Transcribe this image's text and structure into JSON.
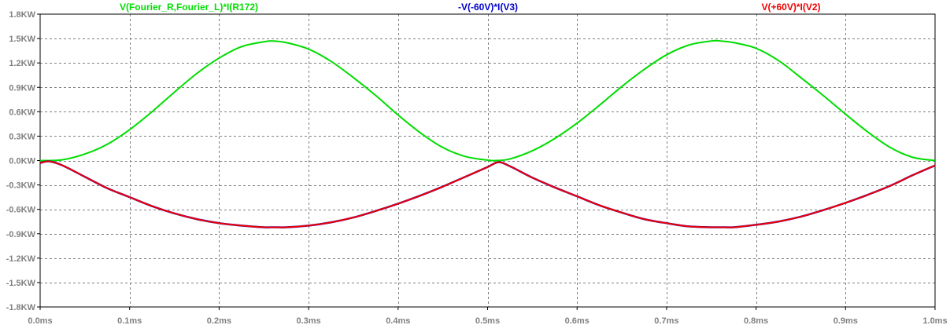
{
  "chart_data": {
    "type": "line",
    "title": "",
    "xlabel": "",
    "ylabel": "",
    "xlim": [
      0,
      1.0
    ],
    "ylim": [
      -1.8,
      1.8
    ],
    "grid": true,
    "legend_placement": "top",
    "x_ticks": [
      "0.0ms",
      "0.1ms",
      "0.2ms",
      "0.3ms",
      "0.4ms",
      "0.5ms",
      "0.6ms",
      "0.7ms",
      "0.8ms",
      "0.9ms",
      "1.0ms"
    ],
    "y_ticks": [
      "1.8KW",
      "1.5KW",
      "1.2KW",
      "0.9KW",
      "0.6KW",
      "0.3KW",
      "0.0KW",
      "-0.3KW",
      "-0.6KW",
      "-0.9KW",
      "-1.2KW",
      "-1.5KW",
      "-1.8KW"
    ],
    "x_tick_values": [
      0,
      0.1,
      0.2,
      0.3,
      0.4,
      0.5,
      0.6,
      0.7,
      0.8,
      0.9,
      1.0
    ],
    "y_tick_values": [
      1.8,
      1.5,
      1.2,
      0.9,
      0.6,
      0.3,
      0.0,
      -0.3,
      -0.6,
      -0.9,
      -1.2,
      -1.5,
      -1.8
    ],
    "series": [
      {
        "name": "V(Fourier_R,Fourier_L)*I(R172)",
        "color": "#00dd00",
        "x": [
          0.0,
          0.025,
          0.05,
          0.075,
          0.1,
          0.125,
          0.15,
          0.175,
          0.2,
          0.225,
          0.25,
          0.26,
          0.275,
          0.3,
          0.325,
          0.35,
          0.375,
          0.4,
          0.425,
          0.45,
          0.475,
          0.5,
          0.51,
          0.525,
          0.55,
          0.575,
          0.6,
          0.625,
          0.65,
          0.675,
          0.7,
          0.725,
          0.75,
          0.76,
          0.775,
          0.8,
          0.825,
          0.85,
          0.875,
          0.9,
          0.925,
          0.95,
          0.975,
          1.0
        ],
        "y": [
          0.0,
          0.01,
          0.08,
          0.2,
          0.38,
          0.6,
          0.84,
          1.07,
          1.26,
          1.4,
          1.46,
          1.47,
          1.45,
          1.37,
          1.22,
          1.02,
          0.8,
          0.56,
          0.34,
          0.16,
          0.05,
          0.005,
          0.0,
          0.02,
          0.12,
          0.27,
          0.46,
          0.68,
          0.91,
          1.12,
          1.3,
          1.42,
          1.47,
          1.47,
          1.45,
          1.38,
          1.23,
          1.02,
          0.8,
          0.57,
          0.35,
          0.16,
          0.04,
          0.0
        ]
      },
      {
        "name": "-V(-60V)*I(V3)",
        "color": "#0000cc",
        "x": [
          0.0,
          0.01,
          0.025,
          0.05,
          0.075,
          0.1,
          0.125,
          0.15,
          0.175,
          0.2,
          0.225,
          0.25,
          0.26,
          0.275,
          0.3,
          0.325,
          0.35,
          0.375,
          0.4,
          0.425,
          0.45,
          0.475,
          0.5,
          0.512,
          0.525,
          0.55,
          0.575,
          0.6,
          0.625,
          0.65,
          0.675,
          0.7,
          0.725,
          0.75,
          0.765,
          0.775,
          0.8,
          0.825,
          0.85,
          0.875,
          0.9,
          0.925,
          0.95,
          0.975,
          1.0
        ],
        "y": [
          -0.03,
          -0.01,
          -0.06,
          -0.2,
          -0.34,
          -0.45,
          -0.56,
          -0.65,
          -0.72,
          -0.77,
          -0.8,
          -0.82,
          -0.82,
          -0.82,
          -0.8,
          -0.76,
          -0.7,
          -0.62,
          -0.53,
          -0.43,
          -0.32,
          -0.2,
          -0.08,
          -0.02,
          -0.07,
          -0.21,
          -0.33,
          -0.44,
          -0.55,
          -0.64,
          -0.72,
          -0.77,
          -0.81,
          -0.82,
          -0.82,
          -0.82,
          -0.79,
          -0.75,
          -0.69,
          -0.61,
          -0.52,
          -0.42,
          -0.31,
          -0.18,
          -0.06
        ]
      },
      {
        "name": "V(+60V)*I(V2)",
        "color": "#ee0000",
        "x": [
          0.0,
          0.01,
          0.025,
          0.05,
          0.075,
          0.1,
          0.125,
          0.15,
          0.175,
          0.2,
          0.225,
          0.25,
          0.26,
          0.275,
          0.3,
          0.325,
          0.35,
          0.375,
          0.4,
          0.425,
          0.45,
          0.475,
          0.5,
          0.512,
          0.525,
          0.55,
          0.575,
          0.6,
          0.625,
          0.65,
          0.675,
          0.7,
          0.725,
          0.75,
          0.765,
          0.775,
          0.8,
          0.825,
          0.85,
          0.875,
          0.9,
          0.925,
          0.95,
          0.975,
          1.0
        ],
        "y": [
          -0.03,
          -0.01,
          -0.06,
          -0.2,
          -0.34,
          -0.45,
          -0.56,
          -0.65,
          -0.72,
          -0.77,
          -0.8,
          -0.82,
          -0.82,
          -0.82,
          -0.8,
          -0.76,
          -0.7,
          -0.62,
          -0.53,
          -0.43,
          -0.32,
          -0.2,
          -0.08,
          -0.02,
          -0.07,
          -0.21,
          -0.33,
          -0.44,
          -0.55,
          -0.64,
          -0.72,
          -0.77,
          -0.81,
          -0.82,
          -0.82,
          -0.82,
          -0.79,
          -0.75,
          -0.69,
          -0.61,
          -0.52,
          -0.42,
          -0.31,
          -0.18,
          -0.06
        ]
      }
    ]
  }
}
